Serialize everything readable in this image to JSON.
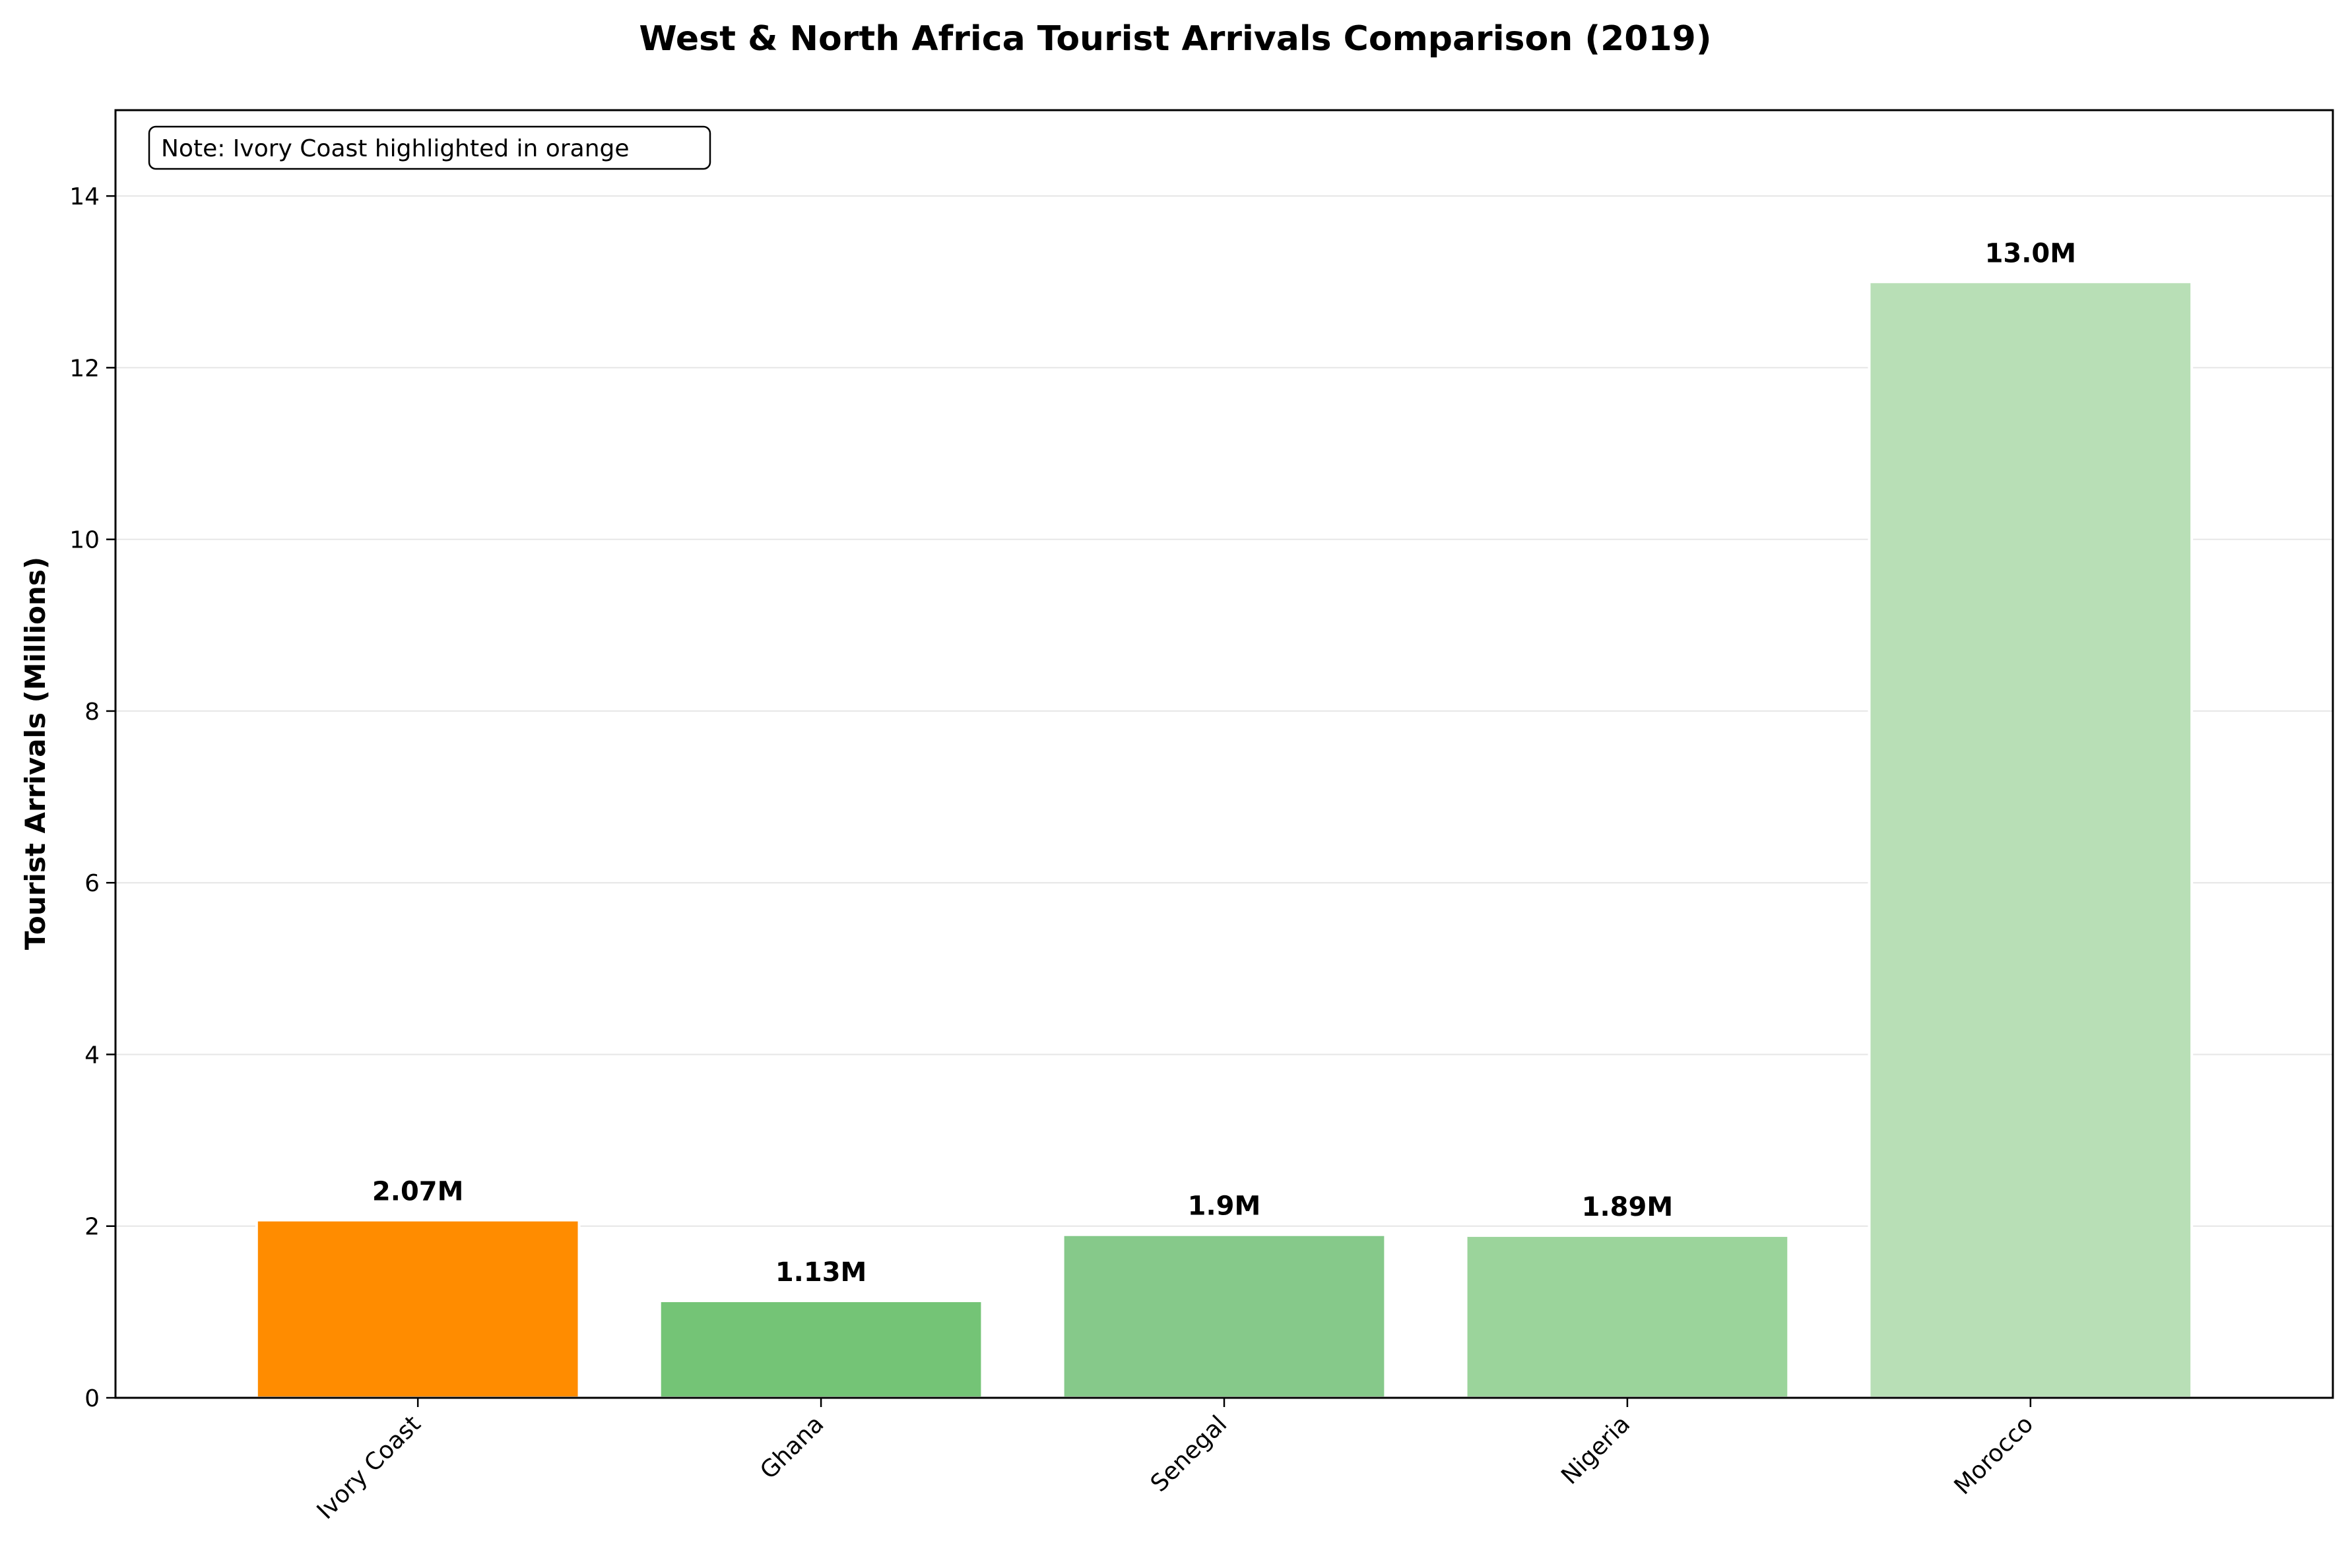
{
  "chart_data": {
    "type": "bar",
    "title": "West & North Africa Tourist Arrivals Comparison (2019)",
    "xlabel": "",
    "ylabel": "Tourist Arrivals (Millions)",
    "categories": [
      "Ivory Coast",
      "Ghana",
      "Senegal",
      "Nigeria",
      "Morocco"
    ],
    "values": [
      2.07,
      1.13,
      1.9,
      1.89,
      13.0
    ],
    "value_labels": [
      "2.07M",
      "1.13M",
      "1.9M",
      "1.89M",
      "13.0M"
    ],
    "colors": [
      "#ff8c00",
      "#74c476",
      "#86c98a",
      "#9bd49b",
      "#b8dfb6"
    ],
    "ylim": [
      0,
      15
    ],
    "yticks": [
      0,
      2,
      4,
      6,
      8,
      10,
      12,
      14
    ],
    "grid": "y",
    "legend": "none",
    "annotation": "Note: Ivory Coast highlighted in orange"
  }
}
